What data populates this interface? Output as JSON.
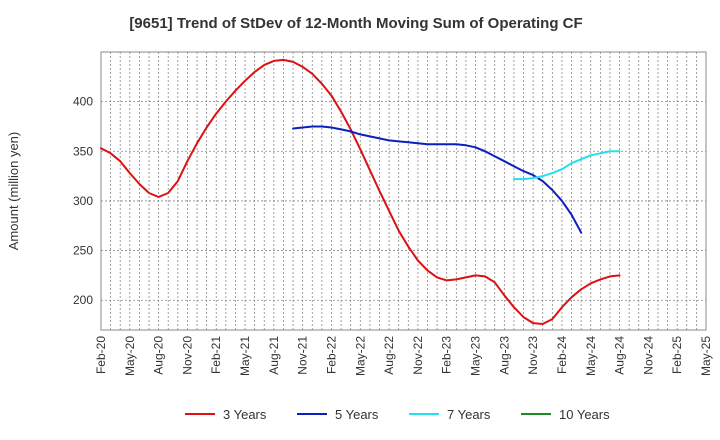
{
  "chart_data": {
    "type": "line",
    "title": "[9651]  Trend of StDev of 12-Month Moving Sum of Operating CF",
    "ylabel": "Amount (million yen)",
    "xlabel": "",
    "ylim": [
      170,
      450
    ],
    "yticks": [
      200,
      250,
      300,
      350,
      400
    ],
    "grid": true,
    "legend_position": "bottom",
    "x_ticks": [
      "Feb-20",
      "May-20",
      "Aug-20",
      "Nov-20",
      "Feb-21",
      "May-21",
      "Aug-21",
      "Nov-21",
      "Feb-22",
      "May-22",
      "Aug-22",
      "Nov-22",
      "Feb-23",
      "May-23",
      "Aug-23",
      "Nov-23",
      "Feb-24",
      "May-24",
      "Aug-24",
      "Nov-24",
      "Feb-25",
      "May-25"
    ],
    "series": [
      {
        "name": "3 Years",
        "color": "#dd1111",
        "points": [
          [
            "2020-02",
            353
          ],
          [
            "2020-03",
            348
          ],
          [
            "2020-04",
            340
          ],
          [
            "2020-05",
            328
          ],
          [
            "2020-06",
            317
          ],
          [
            "2020-07",
            308
          ],
          [
            "2020-08",
            304
          ],
          [
            "2020-09",
            308
          ],
          [
            "2020-10",
            320
          ],
          [
            "2020-11",
            340
          ],
          [
            "2020-12",
            358
          ],
          [
            "2021-01",
            374
          ],
          [
            "2021-02",
            388
          ],
          [
            "2021-03",
            400
          ],
          [
            "2021-04",
            411
          ],
          [
            "2021-05",
            421
          ],
          [
            "2021-06",
            430
          ],
          [
            "2021-07",
            437
          ],
          [
            "2021-08",
            441
          ],
          [
            "2021-09",
            442
          ],
          [
            "2021-10",
            440
          ],
          [
            "2021-11",
            435
          ],
          [
            "2021-12",
            428
          ],
          [
            "2022-01",
            418
          ],
          [
            "2022-02",
            406
          ],
          [
            "2022-03",
            390
          ],
          [
            "2022-04",
            372
          ],
          [
            "2022-05",
            352
          ],
          [
            "2022-06",
            331
          ],
          [
            "2022-07",
            310
          ],
          [
            "2022-08",
            290
          ],
          [
            "2022-09",
            270
          ],
          [
            "2022-10",
            254
          ],
          [
            "2022-11",
            240
          ],
          [
            "2022-12",
            230
          ],
          [
            "2023-01",
            223
          ],
          [
            "2023-02",
            220
          ],
          [
            "2023-03",
            221
          ],
          [
            "2023-04",
            223
          ],
          [
            "2023-05",
            225
          ],
          [
            "2023-06",
            224
          ],
          [
            "2023-07",
            218
          ],
          [
            "2023-08",
            205
          ],
          [
            "2023-09",
            193
          ],
          [
            "2023-10",
            183
          ],
          [
            "2023-11",
            177
          ],
          [
            "2023-12",
            176
          ],
          [
            "2024-01",
            181
          ],
          [
            "2024-02",
            193
          ],
          [
            "2024-03",
            203
          ],
          [
            "2024-04",
            211
          ],
          [
            "2024-05",
            217
          ],
          [
            "2024-06",
            221
          ],
          [
            "2024-07",
            224
          ],
          [
            "2024-08",
            225
          ]
        ]
      },
      {
        "name": "5 Years",
        "color": "#0b1fbf",
        "points": [
          [
            "2021-10",
            373
          ],
          [
            "2021-11",
            374
          ],
          [
            "2021-12",
            375
          ],
          [
            "2022-01",
            375
          ],
          [
            "2022-02",
            374
          ],
          [
            "2022-03",
            372
          ],
          [
            "2022-04",
            370
          ],
          [
            "2022-05",
            367
          ],
          [
            "2022-06",
            365
          ],
          [
            "2022-07",
            363
          ],
          [
            "2022-08",
            361
          ],
          [
            "2022-09",
            360
          ],
          [
            "2022-10",
            359
          ],
          [
            "2022-11",
            358
          ],
          [
            "2022-12",
            357
          ],
          [
            "2023-01",
            357
          ],
          [
            "2023-02",
            357
          ],
          [
            "2023-03",
            357
          ],
          [
            "2023-04",
            356
          ],
          [
            "2023-05",
            354
          ],
          [
            "2023-06",
            350
          ],
          [
            "2023-07",
            345
          ],
          [
            "2023-08",
            340
          ],
          [
            "2023-09",
            335
          ],
          [
            "2023-10",
            330
          ],
          [
            "2023-11",
            326
          ],
          [
            "2023-12",
            320
          ],
          [
            "2024-01",
            311
          ],
          [
            "2024-02",
            300
          ],
          [
            "2024-03",
            286
          ],
          [
            "2024-04",
            268
          ]
        ]
      },
      {
        "name": "7 Years",
        "color": "#22e0ee",
        "points": [
          [
            "2023-09",
            322
          ],
          [
            "2023-10",
            322
          ],
          [
            "2023-11",
            323
          ],
          [
            "2023-12",
            325
          ],
          [
            "2024-01",
            328
          ],
          [
            "2024-02",
            332
          ],
          [
            "2024-03",
            338
          ],
          [
            "2024-04",
            342
          ],
          [
            "2024-05",
            346
          ],
          [
            "2024-06",
            348
          ],
          [
            "2024-07",
            350
          ],
          [
            "2024-08",
            350
          ]
        ]
      },
      {
        "name": "10 Years",
        "color": "#1f8a1f",
        "points": []
      }
    ]
  }
}
